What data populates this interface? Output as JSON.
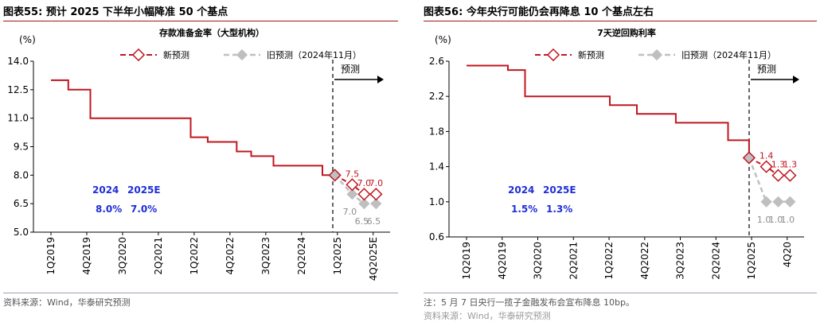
{
  "panels": [
    {
      "title": "图表55:  预计 2025 下半年小幅降准 50 个基点",
      "source": "资料来源：Wind，华泰研究预测",
      "note": ""
    },
    {
      "title": "图表56:  今年央行可能仍会再降息 10 个基点左右",
      "source": "资料来源：Wind，华泰研究预测",
      "note": "注：5 月 7 日央行一揽子金融发布会宣布降息 10bp。"
    }
  ],
  "chart_data": [
    {
      "type": "line",
      "title": "存款准备金率（大型机构）",
      "unit": "(%)",
      "ylim": [
        5.0,
        14.0
      ],
      "yticks": [
        "5.0",
        "6.5",
        "8.0",
        "9.5",
        "11.0",
        "12.5",
        "14.0"
      ],
      "xticks": [
        "1Q2019",
        "4Q2019",
        "3Q2020",
        "2Q2021",
        "1Q2022",
        "4Q2022",
        "3Q2023",
        "2Q2024",
        "1Q2025",
        "4Q2025E"
      ],
      "forecast_label": "预测",
      "legend": {
        "new": "新预测",
        "old": "旧预测（2024年11月）"
      },
      "box": {
        "row1": [
          "2024",
          "2025E"
        ],
        "row2": [
          "8.0%",
          "7.0%"
        ]
      },
      "history": {
        "x": [
          "2019-01-01",
          "2019-01-25",
          "2019-05-15",
          "2019-10-15",
          "2019-11-01",
          "2020-01-06",
          "2020-05-15",
          "2020-08-01",
          "2021-07-15",
          "2021-12-15",
          "2022-04-25",
          "2022-07-01",
          "2022-12-05",
          "2023-03-27",
          "2023-09-15",
          "2024-02-05",
          "2024-06-01",
          "2024-09-27",
          "2025-01-01"
        ],
        "y": [
          13.0,
          13.0,
          12.5,
          12.5,
          11.0,
          11.0,
          11.0,
          11.0,
          11.0,
          10.0,
          9.75,
          9.75,
          9.25,
          9.0,
          8.5,
          8.5,
          8.5,
          8.0,
          8.0
        ]
      },
      "new_forecast": {
        "x": [
          "2025-01-01",
          "2025-05-15",
          "2025-08-15",
          "2025-11-15"
        ],
        "y": [
          8.0,
          7.5,
          7.0,
          7.0
        ],
        "labels": [
          "",
          "7.5",
          "7.0",
          "7.0"
        ]
      },
      "old_forecast": {
        "x": [
          "2025-01-01",
          "2025-05-15",
          "2025-08-15",
          "2025-11-15"
        ],
        "y": [
          8.0,
          7.0,
          6.5,
          6.5
        ],
        "labels": [
          "",
          "7.0",
          "6.5",
          "6.5"
        ]
      },
      "grid": false,
      "legend_position": "top-center",
      "colors": {
        "history": "#c0171f",
        "new": "#c0171f",
        "old": "#bfbfbf",
        "box_text": "#1f2fd6"
      }
    },
    {
      "type": "line",
      "title": "7天逆回购利率",
      "unit": "(%)",
      "ylim": [
        0.6,
        2.6
      ],
      "yticks": [
        "0.6",
        "1.0",
        "1.4",
        "1.8",
        "2.2",
        "2.6"
      ],
      "xticks": [
        "1Q2019",
        "4Q2019",
        "3Q2020",
        "2Q2021",
        "1Q2022",
        "4Q2022",
        "3Q2023",
        "2Q2024",
        "1Q2025",
        "4Q20"
      ],
      "forecast_label": "预测",
      "legend": {
        "new": "新预测",
        "old": "旧预测（2024年11月）"
      },
      "box": {
        "row1": [
          "2024",
          "2025E"
        ],
        "row2": [
          "1.5%",
          "1.3%"
        ]
      },
      "history": {
        "x": [
          "2019-01-01",
          "2019-06-01",
          "2019-11-18",
          "2020-03-30",
          "2021-03-01",
          "2022-01-17",
          "2022-08-15",
          "2023-06-13",
          "2024-07-22",
          "2025-01-01"
        ],
        "y": [
          2.55,
          2.55,
          2.5,
          2.2,
          2.2,
          2.1,
          2.0,
          1.9,
          1.7,
          1.5
        ]
      },
      "new_forecast": {
        "x": [
          "2025-01-01",
          "2025-05-15",
          "2025-08-15",
          "2025-11-15"
        ],
        "y": [
          1.5,
          1.4,
          1.3,
          1.3
        ],
        "labels": [
          "",
          "1.4",
          "1.3",
          "1.3"
        ]
      },
      "old_forecast": {
        "x": [
          "2025-01-01",
          "2025-05-15",
          "2025-08-15",
          "2025-11-15"
        ],
        "y": [
          1.5,
          1.0,
          1.0,
          1.0
        ],
        "labels": [
          "",
          "1.0",
          "1.0",
          "1.0"
        ]
      },
      "grid": false,
      "legend_position": "top-center",
      "colors": {
        "history": "#c0171f",
        "new": "#c0171f",
        "old": "#bfbfbf",
        "box_text": "#1f2fd6"
      }
    }
  ]
}
